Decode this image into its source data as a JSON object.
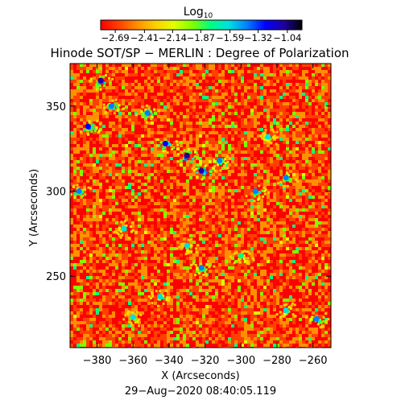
{
  "chart_data": {
    "type": "heatmap",
    "title": "Hinode SOT/SP − MERLIN : Degree of Polarization",
    "xlabel": "X (Arcseconds)",
    "ylabel": "Y (Arcseconds)",
    "timestamp": "29−Aug−2020 08:40:05.119",
    "colorbar": {
      "label_main": "Log",
      "label_sub": "10",
      "range": [
        -2.83,
        -0.9
      ],
      "tick_values": [
        -2.69,
        -2.41,
        -2.14,
        -1.87,
        -1.59,
        -1.32,
        -1.04
      ],
      "tick_labels": [
        "−2.69",
        "−2.41",
        "−2.14",
        "−1.87",
        "−1.59",
        "−1.32",
        "−1.04"
      ],
      "colormap": [
        "#ff0000",
        "#ff4000",
        "#ff9000",
        "#ffd000",
        "#e0ff00",
        "#80ff00",
        "#00ff80",
        "#00e0e0",
        "#0080ff",
        "#0000ff",
        "#2000a0",
        "#000000"
      ]
    },
    "xlim": [
      -395,
      -250
    ],
    "ylim": [
      208,
      375
    ],
    "xticks": [
      -380,
      -360,
      -340,
      -320,
      -300,
      -280,
      -260
    ],
    "xtick_labels": [
      "−380",
      "−360",
      "−340",
      "−320",
      "−300",
      "−280",
      "−260"
    ],
    "yticks": [
      250,
      300,
      350
    ],
    "ytick_labels": [
      "250",
      "300",
      "350"
    ],
    "regions": [
      {
        "x": -378,
        "y": 365,
        "level": -1.2
      },
      {
        "x": -385,
        "y": 338,
        "level": -1.3
      },
      {
        "x": -372,
        "y": 350,
        "level": -1.45
      },
      {
        "x": -352,
        "y": 346,
        "level": -1.4
      },
      {
        "x": -342,
        "y": 328,
        "level": -1.3
      },
      {
        "x": -330,
        "y": 321,
        "level": -1.1
      },
      {
        "x": -322,
        "y": 312,
        "level": -1.2
      },
      {
        "x": -312,
        "y": 318,
        "level": -1.5
      },
      {
        "x": -292,
        "y": 300,
        "level": -1.4
      },
      {
        "x": -275,
        "y": 308,
        "level": -1.5
      },
      {
        "x": -285,
        "y": 332,
        "level": -1.7
      },
      {
        "x": -390,
        "y": 300,
        "level": -1.5
      },
      {
        "x": -365,
        "y": 278,
        "level": -1.6
      },
      {
        "x": -330,
        "y": 268,
        "level": -1.7
      },
      {
        "x": -322,
        "y": 255,
        "level": -1.5
      },
      {
        "x": -345,
        "y": 238,
        "level": -1.6
      },
      {
        "x": -360,
        "y": 226,
        "level": -1.7
      },
      {
        "x": -275,
        "y": 230,
        "level": -1.6
      },
      {
        "x": -258,
        "y": 225,
        "level": -1.5
      },
      {
        "x": -300,
        "y": 262,
        "level": -1.8
      }
    ],
    "background_level": -2.6
  }
}
